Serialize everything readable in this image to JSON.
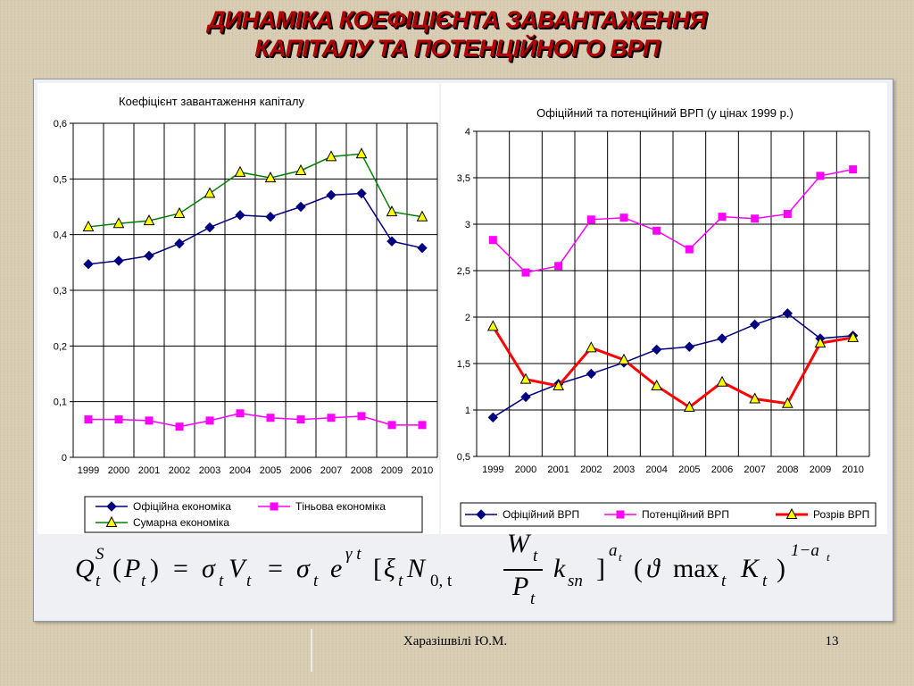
{
  "slide": {
    "title_line1": "ДИНАМІКА  КОЕФІЦІЄНТА ЗАВАНТАЖЕННЯ",
    "title_line2": "КАПІТАЛУ ТА ПОТЕНЦІЙНОГО ВРП",
    "author": "Харазішвілі Ю.М.",
    "page": "13"
  },
  "chart_data": [
    {
      "type": "line",
      "title": "Коефіцієнт завантаження капіталу",
      "categories": [
        "1999",
        "2000",
        "2001",
        "2002",
        "2003",
        "2004",
        "2005",
        "2006",
        "2007",
        "2008",
        "2009",
        "2010"
      ],
      "ylim": [
        0,
        0.6
      ],
      "yticks": [
        "0",
        "0,1",
        "0,2",
        "0,3",
        "0,4",
        "0,5",
        "0,6"
      ],
      "grid": true,
      "legend": "bottom",
      "series": [
        {
          "name": "Офіційна економіка",
          "color": "#000080",
          "marker": "diamond",
          "values": [
            0.347,
            0.353,
            0.362,
            0.384,
            0.413,
            0.435,
            0.432,
            0.45,
            0.471,
            0.474,
            0.388,
            0.376
          ]
        },
        {
          "name": "Тіньова економіка",
          "color": "#ff00ff",
          "marker": "square",
          "values": [
            0.068,
            0.068,
            0.066,
            0.055,
            0.066,
            0.079,
            0.071,
            0.068,
            0.071,
            0.074,
            0.058,
            0.058
          ]
        },
        {
          "name": "Сумарна економіка",
          "color": "#008000",
          "marker": "triangle",
          "values": [
            0.414,
            0.42,
            0.425,
            0.438,
            0.474,
            0.512,
            0.502,
            0.515,
            0.54,
            0.545,
            0.441,
            0.432
          ]
        }
      ]
    },
    {
      "type": "line",
      "title": "Офіційний та  потенційний ВРП (у цінах 1999 р.)",
      "categories": [
        "1999",
        "2000",
        "2001",
        "2002",
        "2003",
        "2004",
        "2005",
        "2006",
        "2007",
        "2008",
        "2009",
        "2010"
      ],
      "ylim": [
        0.5,
        4
      ],
      "yticks": [
        "0,5",
        "1",
        "1,5",
        "2",
        "2,5",
        "3",
        "3,5",
        "4"
      ],
      "grid": true,
      "legend": "bottom",
      "series": [
        {
          "name": "Офіційний ВРП",
          "color": "#000080",
          "marker": "diamond",
          "values": [
            0.92,
            1.14,
            1.28,
            1.39,
            1.51,
            1.65,
            1.68,
            1.77,
            1.92,
            2.04,
            1.77,
            1.8
          ]
        },
        {
          "name": "Потенційний ВРП",
          "color": "#ff00ff",
          "marker": "square",
          "values": [
            2.83,
            2.48,
            2.55,
            3.05,
            3.07,
            2.93,
            2.73,
            3.08,
            3.06,
            3.11,
            3.52,
            3.59
          ]
        },
        {
          "name": "Розрів  ВРП",
          "color": "#ff0000",
          "marker": "triangle",
          "values": [
            1.9,
            1.33,
            1.26,
            1.67,
            1.54,
            1.26,
            1.03,
            1.3,
            1.12,
            1.07,
            1.72,
            1.78
          ]
        }
      ]
    }
  ],
  "formula": {
    "Q": "Q",
    "Qsup": "S",
    "Qsub": "t",
    "lpar1": "(",
    "P1": "P",
    "P1sub": "t",
    "rpar1": ")",
    "eq1": "=",
    "sigma1": "σ",
    "sigma1sub": "t",
    "V": "V",
    "Vsub": "t",
    "eq2": "=",
    "sigma2": "σ",
    "sigma2sub": "t",
    "e": "e",
    "esup": "γ t",
    "lbr": "[",
    "xi": "ξ",
    "xisub": "t",
    "N": "N",
    "Nsub": "0, t",
    "W": "W",
    "Wsub": "t",
    "P2": "P",
    "P2sub": "t",
    "k": "k",
    "ksub": "sn",
    "rbr": "]",
    "brsup": "a",
    "brsupsub": "t",
    "lpar2": "(",
    "theta": "ϑ",
    "max": "max",
    "maxsub": "t",
    "K": "K",
    "Ksub": "t",
    "rpar2": ")",
    "endsup": "1−a",
    "endsupsub": "t"
  }
}
